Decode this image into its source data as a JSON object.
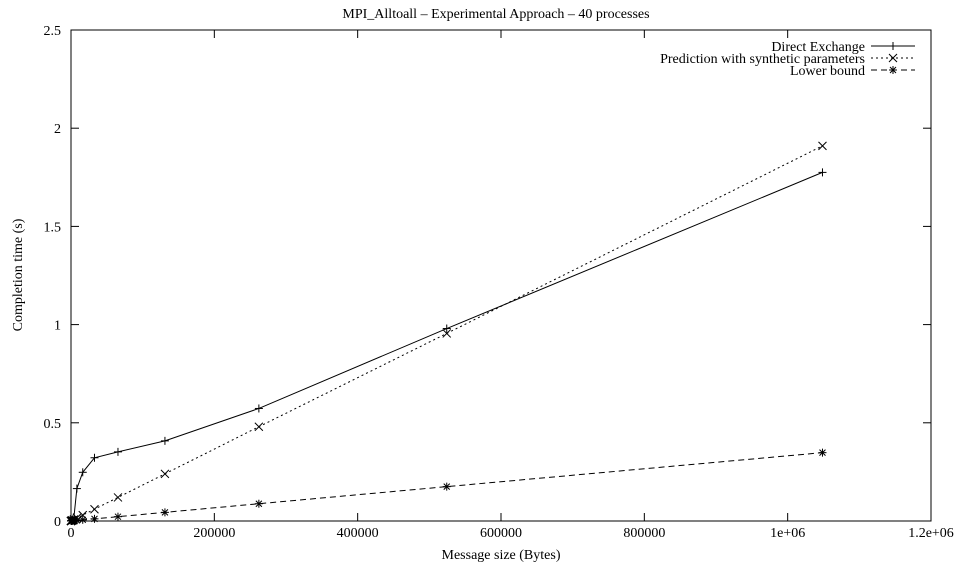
{
  "chart_data": {
    "type": "line",
    "title": "MPI_Alltoall – Experimental Approach – 40 processes",
    "xlabel": "Message size (Bytes)",
    "ylabel": "Completion time (s)",
    "xlim": [
      0,
      1200000
    ],
    "ylim": [
      0,
      2.5
    ],
    "x_ticks": [
      {
        "value": 0,
        "label": "0"
      },
      {
        "value": 200000,
        "label": "200000"
      },
      {
        "value": 400000,
        "label": "400000"
      },
      {
        "value": 600000,
        "label": "600000"
      },
      {
        "value": 800000,
        "label": "800000"
      },
      {
        "value": 1000000,
        "label": "1e+06"
      },
      {
        "value": 1200000,
        "label": "1.2e+06"
      }
    ],
    "y_ticks": [
      {
        "value": 0,
        "label": "0"
      },
      {
        "value": 0.5,
        "label": "0.5"
      },
      {
        "value": 1,
        "label": "1"
      },
      {
        "value": 1.5,
        "label": "1.5"
      },
      {
        "value": 2,
        "label": "2"
      },
      {
        "value": 2.5,
        "label": "2.5"
      }
    ],
    "grid": false,
    "legend_position": "top-right",
    "series": [
      {
        "name": "Direct Exchange",
        "marker": "plus",
        "dash": "solid",
        "points": [
          [
            1,
            0.0
          ],
          [
            2,
            0.0
          ],
          [
            4,
            0.0
          ],
          [
            8,
            0.0
          ],
          [
            16,
            0.0
          ],
          [
            32,
            0.0
          ],
          [
            64,
            0.0
          ],
          [
            128,
            0.001
          ],
          [
            256,
            0.001
          ],
          [
            512,
            0.002
          ],
          [
            1024,
            0.004
          ],
          [
            2048,
            0.008
          ],
          [
            4096,
            0.02
          ],
          [
            8192,
            0.165
          ],
          [
            16384,
            0.248
          ],
          [
            32768,
            0.322
          ],
          [
            65536,
            0.352
          ],
          [
            131072,
            0.408
          ],
          [
            262144,
            0.573
          ],
          [
            524288,
            0.98
          ],
          [
            1048576,
            1.775
          ]
        ]
      },
      {
        "name": "Prediction with synthetic parameters",
        "marker": "cross",
        "dash": "dotted",
        "points": [
          [
            1,
            0.0
          ],
          [
            2,
            0.0
          ],
          [
            4,
            0.0
          ],
          [
            8,
            0.0
          ],
          [
            16,
            0.0
          ],
          [
            32,
            0.0
          ],
          [
            64,
            0.0
          ],
          [
            128,
            0.001
          ],
          [
            256,
            0.001
          ],
          [
            512,
            0.001
          ],
          [
            1024,
            0.002
          ],
          [
            2048,
            0.004
          ],
          [
            4096,
            0.008
          ],
          [
            8192,
            0.016
          ],
          [
            16384,
            0.03
          ],
          [
            32768,
            0.06
          ],
          [
            65536,
            0.12
          ],
          [
            131072,
            0.24
          ],
          [
            262144,
            0.48
          ],
          [
            524288,
            0.955
          ],
          [
            1048576,
            1.91
          ]
        ]
      },
      {
        "name": "Lower bound",
        "marker": "star",
        "dash": "dashed",
        "points": [
          [
            1,
            0.0
          ],
          [
            2,
            0.0
          ],
          [
            4,
            0.0
          ],
          [
            8,
            0.0
          ],
          [
            16,
            0.0
          ],
          [
            32,
            0.0
          ],
          [
            64,
            0.0
          ],
          [
            128,
            0.0
          ],
          [
            256,
            0.0
          ],
          [
            512,
            0.0
          ],
          [
            1024,
            0.0
          ],
          [
            2048,
            0.001
          ],
          [
            4096,
            0.002
          ],
          [
            8192,
            0.003
          ],
          [
            16384,
            0.006
          ],
          [
            32768,
            0.011
          ],
          [
            65536,
            0.022
          ],
          [
            131072,
            0.044
          ],
          [
            262144,
            0.088
          ],
          [
            524288,
            0.175
          ],
          [
            1048576,
            0.348
          ]
        ]
      }
    ]
  }
}
